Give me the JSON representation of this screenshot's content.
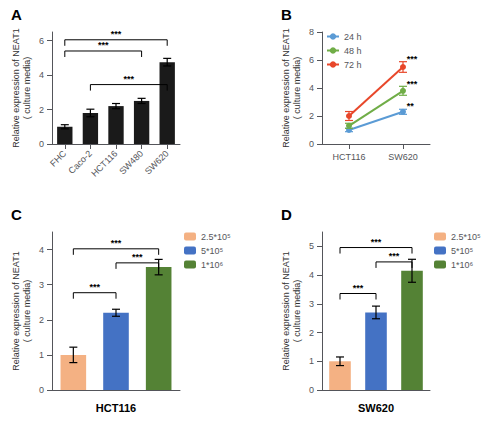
{
  "chart_data": [
    {
      "type": "bar",
      "title": "A",
      "categories": [
        "FHC",
        "Caco-2",
        "HCT116",
        "SW480",
        "SW620"
      ],
      "values": [
        1.0,
        1.8,
        2.2,
        2.5,
        4.75
      ],
      "errors": [
        0.12,
        0.22,
        0.15,
        0.15,
        0.22
      ],
      "color": "#1a1a1a",
      "ylabel": "Relative expression of NEAT1\n( culture media)",
      "ylim": [
        0,
        6.5
      ],
      "yticks": [
        0,
        2,
        4,
        6
      ],
      "grid": false,
      "annotations": [
        {
          "from": "Caco-2",
          "to": "SW620",
          "y": 3.1,
          "text": "***"
        },
        {
          "from": "FHC",
          "to": "SW480",
          "y": 5.05,
          "text": "***"
        },
        {
          "from": "FHC",
          "to": "SW620",
          "y": 5.7,
          "text": "***"
        }
      ]
    },
    {
      "type": "line",
      "title": "B",
      "categories": [
        "HCT116",
        "SW620"
      ],
      "series": [
        {
          "name": "24 h",
          "color": "#5b9bd5",
          "values": [
            1.0,
            2.3
          ],
          "errors": [
            0.12,
            0.18
          ]
        },
        {
          "name": "48 h",
          "color": "#70ad47",
          "values": [
            1.3,
            3.8
          ],
          "errors": [
            0.18,
            0.32
          ]
        },
        {
          "name": "72 h",
          "color": "#e8472a",
          "values": [
            2.0,
            5.5
          ],
          "errors": [
            0.32,
            0.38
          ]
        }
      ],
      "marker": "circle",
      "ylabel": "Relative expression of NEAT1\n( culture media)",
      "ylim": [
        0,
        8
      ],
      "yticks": [
        0,
        2,
        4,
        6,
        8
      ],
      "grid": false,
      "legend": "upper left",
      "annotations": [
        {
          "x": "SW620",
          "y": 2.68,
          "text": "**"
        },
        {
          "x": "SW620",
          "y": 4.32,
          "text": "***"
        },
        {
          "x": "SW620",
          "y": 6.08,
          "text": "***"
        }
      ]
    },
    {
      "type": "bar",
      "title": "C",
      "categories": [
        "2.5*10⁵",
        "5*10⁵",
        "1*10⁶"
      ],
      "values": [
        1.0,
        2.2,
        3.5
      ],
      "errors": [
        0.22,
        0.1,
        0.22
      ],
      "colors": [
        "#f4b183",
        "#4472c4",
        "#548235"
      ],
      "xlabel": "HCT116",
      "ylabel": "Relative expression of NEAT1\n( culture media)",
      "ylim": [
        0,
        4.5
      ],
      "yticks": [
        0,
        1,
        2,
        3,
        4
      ],
      "grid": false,
      "legend": "upper right",
      "tick_labels": "y",
      "annotations": [
        {
          "from": "2.5*10⁵",
          "to": "5*10⁵",
          "y": 2.6,
          "text": "***"
        },
        {
          "from": "2.5*10⁵",
          "to": "1*10⁶",
          "y": 3.85,
          "text": "***"
        },
        {
          "from": "5*10⁵",
          "to": "1*10⁶",
          "y": 3.45,
          "text": "***"
        }
      ]
    },
    {
      "type": "bar",
      "title": "D",
      "categories": [
        "2.5*10⁵",
        "5*10⁵",
        "1*10⁶"
      ],
      "values": [
        1.0,
        2.7,
        4.15
      ],
      "errors": [
        0.15,
        0.22,
        0.4
      ],
      "colors": [
        "#f4b183",
        "#4472c4",
        "#548235"
      ],
      "xlabel": "SW620",
      "ylabel": "Relative expression of NEAT1\n( culture media)",
      "ylim": [
        0,
        5.5
      ],
      "yticks": [
        0,
        1,
        2,
        3,
        4,
        5
      ],
      "grid": false,
      "legend": "upper right",
      "tick_labels": "y",
      "annotations": [
        {
          "from": "2.5*10⁵",
          "to": "5*10⁵",
          "y": 3.15,
          "text": "***"
        },
        {
          "from": "2.5*10⁵",
          "to": "1*10⁶",
          "y": 4.75,
          "text": "***"
        },
        {
          "from": "5*10⁵",
          "to": "1*10⁶",
          "y": 4.25,
          "text": "***"
        }
      ]
    }
  ]
}
